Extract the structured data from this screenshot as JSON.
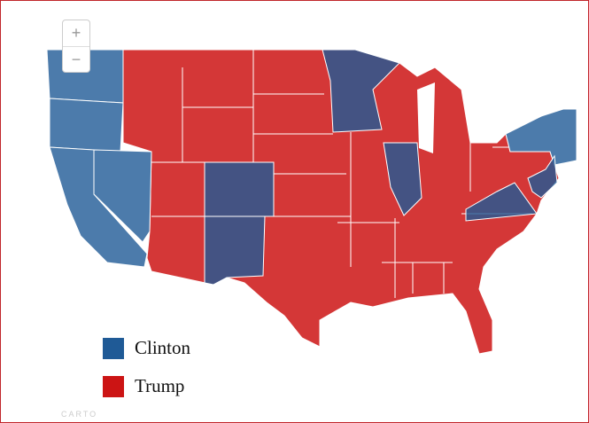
{
  "zoom": {
    "in": "+",
    "out": "−"
  },
  "legend": {
    "items": [
      {
        "label": "Clinton",
        "color": "#1f5a96"
      },
      {
        "label": "Trump",
        "color": "#cc1414"
      }
    ]
  },
  "attribution": "CARTO"
}
